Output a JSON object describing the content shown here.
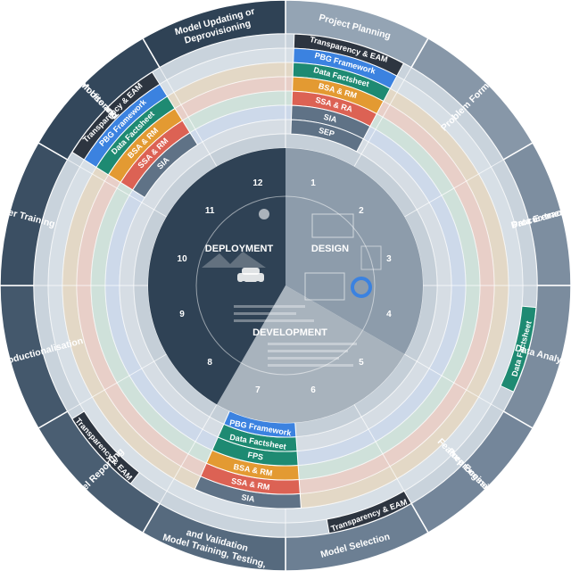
{
  "center": {
    "design": "DESIGN",
    "development": "DEVELOPMENT",
    "deployment": "DEPLOYMENT"
  },
  "numbers": [
    "1",
    "2",
    "3",
    "4",
    "5",
    "6",
    "7",
    "8",
    "9",
    "10",
    "11",
    "12"
  ],
  "stages": [
    {
      "key": "project-planning",
      "lines": [
        "Project Planning"
      ]
    },
    {
      "key": "problem-formulation",
      "lines": [
        "Problem Formulation"
      ]
    },
    {
      "key": "data-extraction",
      "lines": [
        "Data Extraction or",
        "Procurement"
      ]
    },
    {
      "key": "data-analysis",
      "lines": [
        "Data Analysis"
      ]
    },
    {
      "key": "preprocessing",
      "lines": [
        "Preprocessing and",
        "Feature Engineering"
      ]
    },
    {
      "key": "model-selection",
      "lines": [
        "Model Selection"
      ]
    },
    {
      "key": "model-training",
      "lines": [
        "Model  Training, Testing,",
        "and Validation"
      ]
    },
    {
      "key": "model-reporting",
      "lines": [
        "Model Reporting"
      ]
    },
    {
      "key": "model-productionalisation",
      "lines": [
        "Model Productionalisation"
      ]
    },
    {
      "key": "user-training",
      "lines": [
        "User Training"
      ]
    },
    {
      "key": "system-use",
      "lines": [
        "System Use and",
        "Monitoring"
      ]
    },
    {
      "key": "model-updating",
      "lines": [
        "Model Updating or",
        "Deprovisioning"
      ]
    }
  ],
  "bands": {
    "top": [
      "Transparency & EAM",
      "PBG Framework",
      "Data Factsheet",
      "BSA & RM",
      "SSA & RA",
      "SIA",
      "SEP"
    ],
    "top_left": [
      "Transparency & EAM",
      "PBG Framework",
      "Data Factsheet",
      "BSA & RM",
      "SSA & RM",
      "SIA"
    ],
    "right": [
      "Data Factsheet"
    ],
    "bottom": [
      "SIA",
      "SSA & RM",
      "BSA & RM",
      "FPS",
      "Data Factsheet",
      "PBG Framework"
    ],
    "bottom_left": [
      "Transparency & EAM"
    ],
    "bottom_right": [
      "Transparency & EAM"
    ]
  },
  "colors": {
    "navy": "#2f4255",
    "slate": "#5f7286",
    "light_slate": "#8a9aaa",
    "pale": "#b9c4ce",
    "teal": "#1e8a72",
    "blue": "#3b82e0",
    "orange": "#e39a32",
    "red": "#dc6254",
    "dark": "#2d3540"
  }
}
